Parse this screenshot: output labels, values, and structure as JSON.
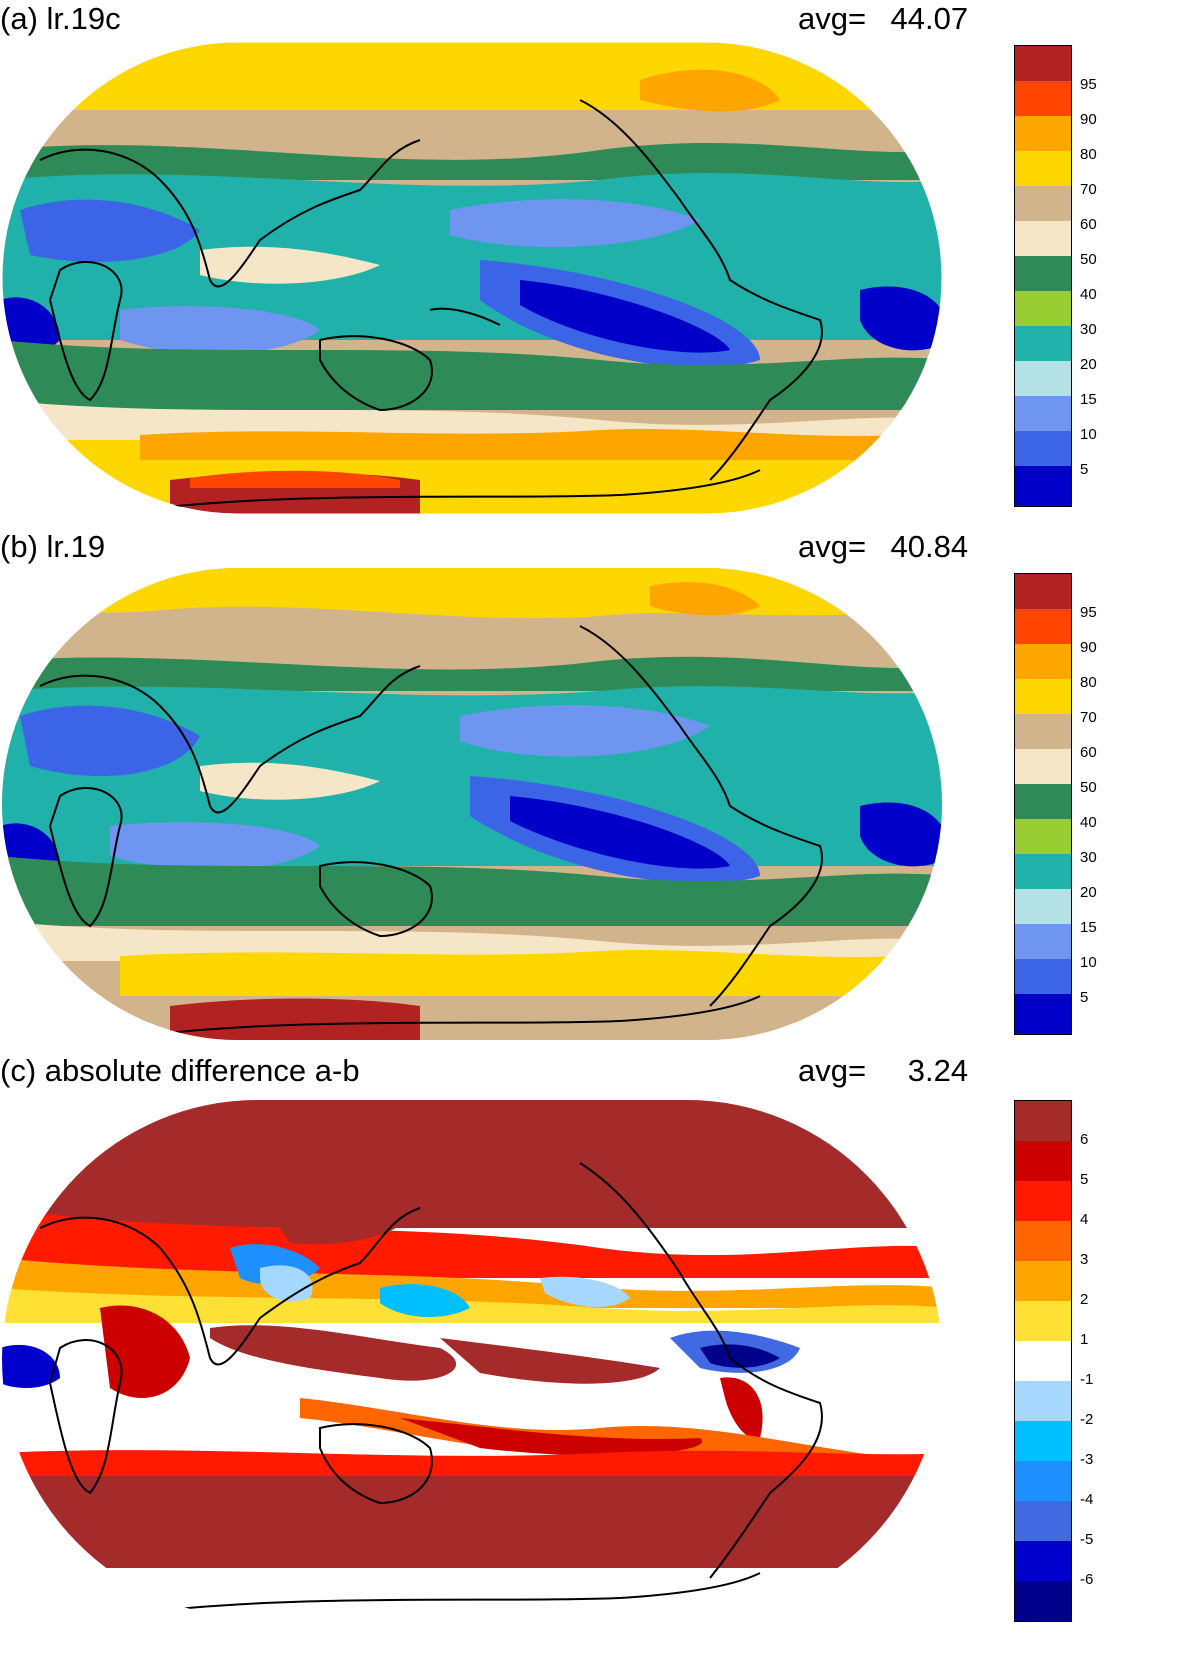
{
  "panels": [
    {
      "title": "(a) lr.19c",
      "avg_label": "avg=",
      "avg_value": "44.07",
      "colorbar": {
        "colors": [
          "#0000c8",
          "#3c64e6",
          "#6e96f0",
          "#b4e1e6",
          "#20b2aa",
          "#9acd32",
          "#2e8b57",
          "#f5e6c8",
          "#d2b48c",
          "#ffd700",
          "#ffa500",
          "#ff4500",
          "#b22222"
        ],
        "labels": [
          "5",
          "10",
          "15",
          "20",
          "30",
          "40",
          "50",
          "60",
          "70",
          "80",
          "90",
          "95"
        ]
      }
    },
    {
      "title": "(b) lr.19",
      "avg_label": "avg=",
      "avg_value": "40.84",
      "colorbar": {
        "colors": [
          "#0000c8",
          "#3c64e6",
          "#6e96f0",
          "#b4e1e6",
          "#20b2aa",
          "#9acd32",
          "#2e8b57",
          "#f5e6c8",
          "#d2b48c",
          "#ffd700",
          "#ffa500",
          "#ff4500",
          "#b22222"
        ],
        "labels": [
          "5",
          "10",
          "15",
          "20",
          "30",
          "40",
          "50",
          "60",
          "70",
          "80",
          "90",
          "95"
        ]
      }
    },
    {
      "title": "(c) absolute difference a-b",
      "avg_label": "avg=",
      "avg_value": "3.24",
      "colorbar": {
        "colors": [
          "#00008b",
          "#0000cd",
          "#4169e1",
          "#1e90ff",
          "#00bfff",
          "#a6d8ff",
          "#ffffff",
          "#ffe135",
          "#ffa500",
          "#ff6600",
          "#ff1a00",
          "#cd0000",
          "#a52a2a"
        ],
        "labels": [
          "-6",
          "-5",
          "-4",
          "-3",
          "-2",
          "-1",
          "1",
          "2",
          "3",
          "4",
          "5",
          "6"
        ]
      }
    }
  ]
}
